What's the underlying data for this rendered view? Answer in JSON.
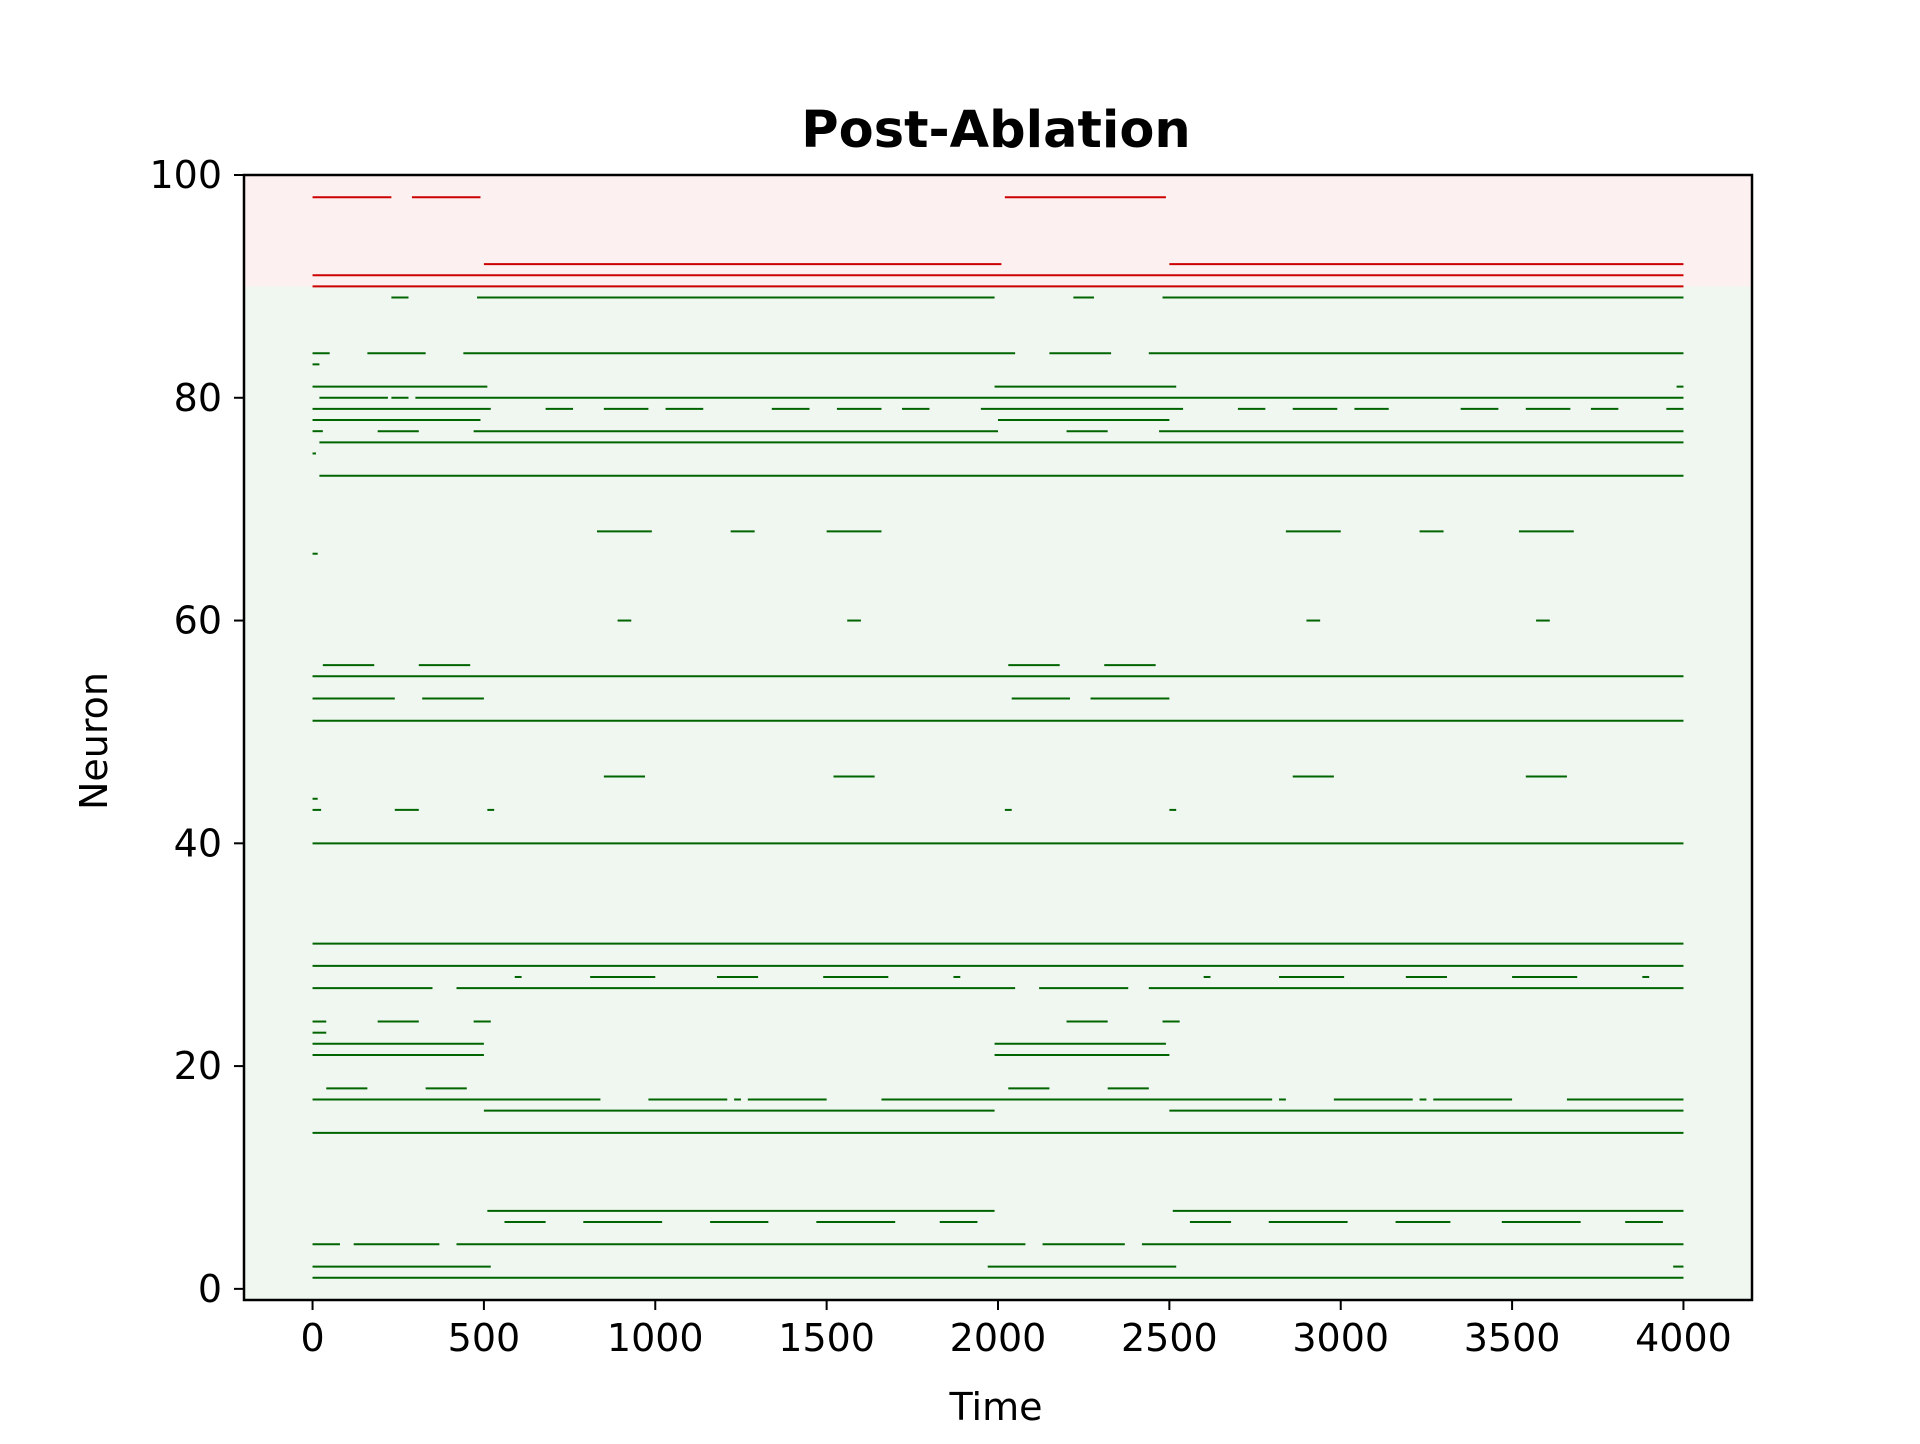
{
  "chart_data": {
    "type": "raster",
    "title": "Post-Ablation",
    "xlabel": "Time",
    "ylabel": "Neuron",
    "xlim": [
      -200,
      4200
    ],
    "ylim": [
      -1,
      100
    ],
    "x_ticks": [
      0,
      500,
      1000,
      1500,
      2000,
      2500,
      3000,
      3500,
      4000
    ],
    "x_tick_labels": [
      "0",
      "500",
      "1000",
      "1500",
      "2000",
      "2500",
      "3000",
      "3500",
      "4000"
    ],
    "y_ticks": [
      0,
      20,
      40,
      60,
      80,
      100
    ],
    "y_tick_labels": [
      "0",
      "20",
      "40",
      "60",
      "80",
      "100"
    ],
    "grid": false,
    "regions": [
      {
        "y_from": -1,
        "y_to": 90,
        "color": "#f0f7f0"
      },
      {
        "y_from": 90,
        "y_to": 100,
        "color": "#fdf0f0"
      }
    ],
    "series": [
      {
        "color": "#cc0000",
        "segments": [
          {
            "y": 98,
            "x0": 0,
            "x1": 230
          },
          {
            "y": 98,
            "x0": 290,
            "x1": 490
          },
          {
            "y": 98,
            "x0": 2020,
            "x1": 2490
          },
          {
            "y": 92,
            "x0": 500,
            "x1": 2010
          },
          {
            "y": 92,
            "x0": 2500,
            "x1": 4000
          },
          {
            "y": 91,
            "x0": 0,
            "x1": 4000
          },
          {
            "y": 90,
            "x0": 0,
            "x1": 4000
          }
        ]
      },
      {
        "color": "#006400",
        "segments": [
          {
            "y": 89,
            "x0": 230,
            "x1": 280
          },
          {
            "y": 89,
            "x0": 480,
            "x1": 1990
          },
          {
            "y": 89,
            "x0": 2220,
            "x1": 2280
          },
          {
            "y": 89,
            "x0": 2480,
            "x1": 4000
          },
          {
            "y": 84,
            "x0": 0,
            "x1": 50
          },
          {
            "y": 84,
            "x0": 160,
            "x1": 330
          },
          {
            "y": 84,
            "x0": 440,
            "x1": 2050
          },
          {
            "y": 84,
            "x0": 2150,
            "x1": 2330
          },
          {
            "y": 84,
            "x0": 2440,
            "x1": 4000
          },
          {
            "y": 83,
            "x0": 0,
            "x1": 20
          },
          {
            "y": 81,
            "x0": 0,
            "x1": 510
          },
          {
            "y": 81,
            "x0": 1990,
            "x1": 2520
          },
          {
            "y": 81,
            "x0": 3980,
            "x1": 4000
          },
          {
            "y": 80,
            "x0": 20,
            "x1": 220
          },
          {
            "y": 80,
            "x0": 230,
            "x1": 280
          },
          {
            "y": 80,
            "x0": 300,
            "x1": 4000
          },
          {
            "y": 79,
            "x0": 0,
            "x1": 520
          },
          {
            "y": 79,
            "x0": 680,
            "x1": 760
          },
          {
            "y": 79,
            "x0": 850,
            "x1": 980
          },
          {
            "y": 79,
            "x0": 1030,
            "x1": 1140
          },
          {
            "y": 79,
            "x0": 1340,
            "x1": 1450
          },
          {
            "y": 79,
            "x0": 1530,
            "x1": 1660
          },
          {
            "y": 79,
            "x0": 1720,
            "x1": 1800
          },
          {
            "y": 79,
            "x0": 1950,
            "x1": 2540
          },
          {
            "y": 79,
            "x0": 2700,
            "x1": 2780
          },
          {
            "y": 79,
            "x0": 2860,
            "x1": 2990
          },
          {
            "y": 79,
            "x0": 3040,
            "x1": 3140
          },
          {
            "y": 79,
            "x0": 3350,
            "x1": 3460
          },
          {
            "y": 79,
            "x0": 3540,
            "x1": 3670
          },
          {
            "y": 79,
            "x0": 3730,
            "x1": 3810
          },
          {
            "y": 79,
            "x0": 3950,
            "x1": 4000
          },
          {
            "y": 78,
            "x0": 0,
            "x1": 490
          },
          {
            "y": 78,
            "x0": 2000,
            "x1": 2500
          },
          {
            "y": 77,
            "x0": 0,
            "x1": 30
          },
          {
            "y": 77,
            "x0": 190,
            "x1": 310
          },
          {
            "y": 77,
            "x0": 470,
            "x1": 2000
          },
          {
            "y": 77,
            "x0": 2200,
            "x1": 2320
          },
          {
            "y": 77,
            "x0": 2470,
            "x1": 4000
          },
          {
            "y": 76,
            "x0": 20,
            "x1": 4000
          },
          {
            "y": 75,
            "x0": 0,
            "x1": 10
          },
          {
            "y": 73,
            "x0": 20,
            "x1": 4000
          },
          {
            "y": 68,
            "x0": 830,
            "x1": 990
          },
          {
            "y": 68,
            "x0": 1220,
            "x1": 1290
          },
          {
            "y": 68,
            "x0": 1500,
            "x1": 1660
          },
          {
            "y": 68,
            "x0": 2840,
            "x1": 3000
          },
          {
            "y": 68,
            "x0": 3230,
            "x1": 3300
          },
          {
            "y": 68,
            "x0": 3520,
            "x1": 3680
          },
          {
            "y": 66,
            "x0": 0,
            "x1": 15
          },
          {
            "y": 60,
            "x0": 890,
            "x1": 930
          },
          {
            "y": 60,
            "x0": 1560,
            "x1": 1600
          },
          {
            "y": 60,
            "x0": 2900,
            "x1": 2940
          },
          {
            "y": 60,
            "x0": 3570,
            "x1": 3610
          },
          {
            "y": 56,
            "x0": 30,
            "x1": 180
          },
          {
            "y": 56,
            "x0": 310,
            "x1": 460
          },
          {
            "y": 56,
            "x0": 2030,
            "x1": 2180
          },
          {
            "y": 56,
            "x0": 2310,
            "x1": 2460
          },
          {
            "y": 55,
            "x0": 0,
            "x1": 4000
          },
          {
            "y": 53,
            "x0": 0,
            "x1": 240
          },
          {
            "y": 53,
            "x0": 320,
            "x1": 500
          },
          {
            "y": 53,
            "x0": 2040,
            "x1": 2210
          },
          {
            "y": 53,
            "x0": 2270,
            "x1": 2500
          },
          {
            "y": 51,
            "x0": 0,
            "x1": 4000
          },
          {
            "y": 46,
            "x0": 850,
            "x1": 970
          },
          {
            "y": 46,
            "x0": 1520,
            "x1": 1640
          },
          {
            "y": 46,
            "x0": 2860,
            "x1": 2980
          },
          {
            "y": 46,
            "x0": 3540,
            "x1": 3660
          },
          {
            "y": 44,
            "x0": 0,
            "x1": 15
          },
          {
            "y": 43,
            "x0": 0,
            "x1": 25
          },
          {
            "y": 43,
            "x0": 240,
            "x1": 310
          },
          {
            "y": 43,
            "x0": 510,
            "x1": 530
          },
          {
            "y": 43,
            "x0": 2020,
            "x1": 2040
          },
          {
            "y": 43,
            "x0": 2500,
            "x1": 2520
          },
          {
            "y": 40,
            "x0": 0,
            "x1": 4000
          },
          {
            "y": 31,
            "x0": 0,
            "x1": 4000
          },
          {
            "y": 29,
            "x0": 0,
            "x1": 4000
          },
          {
            "y": 28,
            "x0": 590,
            "x1": 610
          },
          {
            "y": 28,
            "x0": 810,
            "x1": 1000
          },
          {
            "y": 28,
            "x0": 1180,
            "x1": 1300
          },
          {
            "y": 28,
            "x0": 1490,
            "x1": 1680
          },
          {
            "y": 28,
            "x0": 1870,
            "x1": 1890
          },
          {
            "y": 28,
            "x0": 2600,
            "x1": 2620
          },
          {
            "y": 28,
            "x0": 2820,
            "x1": 3010
          },
          {
            "y": 28,
            "x0": 3190,
            "x1": 3310
          },
          {
            "y": 28,
            "x0": 3500,
            "x1": 3690
          },
          {
            "y": 28,
            "x0": 3880,
            "x1": 3900
          },
          {
            "y": 27,
            "x0": 0,
            "x1": 350
          },
          {
            "y": 27,
            "x0": 420,
            "x1": 2050
          },
          {
            "y": 27,
            "x0": 2120,
            "x1": 2380
          },
          {
            "y": 27,
            "x0": 2440,
            "x1": 4000
          },
          {
            "y": 24,
            "x0": 0,
            "x1": 40
          },
          {
            "y": 24,
            "x0": 190,
            "x1": 310
          },
          {
            "y": 24,
            "x0": 470,
            "x1": 520
          },
          {
            "y": 24,
            "x0": 2200,
            "x1": 2320
          },
          {
            "y": 24,
            "x0": 2480,
            "x1": 2530
          },
          {
            "y": 23,
            "x0": 0,
            "x1": 40
          },
          {
            "y": 22,
            "x0": 0,
            "x1": 500
          },
          {
            "y": 22,
            "x0": 1990,
            "x1": 2490
          },
          {
            "y": 21,
            "x0": 0,
            "x1": 500
          },
          {
            "y": 21,
            "x0": 1990,
            "x1": 2500
          },
          {
            "y": 18,
            "x0": 40,
            "x1": 160
          },
          {
            "y": 18,
            "x0": 330,
            "x1": 450
          },
          {
            "y": 18,
            "x0": 2030,
            "x1": 2150
          },
          {
            "y": 18,
            "x0": 2320,
            "x1": 2440
          },
          {
            "y": 17,
            "x0": 0,
            "x1": 840
          },
          {
            "y": 17,
            "x0": 980,
            "x1": 1210
          },
          {
            "y": 17,
            "x0": 1230,
            "x1": 1250
          },
          {
            "y": 17,
            "x0": 1270,
            "x1": 1500
          },
          {
            "y": 17,
            "x0": 1660,
            "x1": 2800
          },
          {
            "y": 17,
            "x0": 2820,
            "x1": 2840
          },
          {
            "y": 17,
            "x0": 2980,
            "x1": 3210
          },
          {
            "y": 17,
            "x0": 3230,
            "x1": 3250
          },
          {
            "y": 17,
            "x0": 3270,
            "x1": 3500
          },
          {
            "y": 17,
            "x0": 3660,
            "x1": 4000
          },
          {
            "y": 16,
            "x0": 500,
            "x1": 1990
          },
          {
            "y": 16,
            "x0": 2500,
            "x1": 4000
          },
          {
            "y": 14,
            "x0": 0,
            "x1": 4000
          },
          {
            "y": 7,
            "x0": 510,
            "x1": 1990
          },
          {
            "y": 7,
            "x0": 2510,
            "x1": 4000
          },
          {
            "y": 6,
            "x0": 560,
            "x1": 680
          },
          {
            "y": 6,
            "x0": 790,
            "x1": 1020
          },
          {
            "y": 6,
            "x0": 1160,
            "x1": 1330
          },
          {
            "y": 6,
            "x0": 1470,
            "x1": 1700
          },
          {
            "y": 6,
            "x0": 1830,
            "x1": 1940
          },
          {
            "y": 6,
            "x0": 2560,
            "x1": 2680
          },
          {
            "y": 6,
            "x0": 2790,
            "x1": 3020
          },
          {
            "y": 6,
            "x0": 3160,
            "x1": 3320
          },
          {
            "y": 6,
            "x0": 3470,
            "x1": 3700
          },
          {
            "y": 6,
            "x0": 3830,
            "x1": 3940
          },
          {
            "y": 4,
            "x0": 0,
            "x1": 80
          },
          {
            "y": 4,
            "x0": 120,
            "x1": 370
          },
          {
            "y": 4,
            "x0": 420,
            "x1": 2080
          },
          {
            "y": 4,
            "x0": 2130,
            "x1": 2370
          },
          {
            "y": 4,
            "x0": 2420,
            "x1": 4000
          },
          {
            "y": 2,
            "x0": 0,
            "x1": 520
          },
          {
            "y": 2,
            "x0": 1970,
            "x1": 2520
          },
          {
            "y": 2,
            "x0": 3970,
            "x1": 4000
          },
          {
            "y": 1,
            "x0": 0,
            "x1": 4000
          }
        ]
      }
    ]
  }
}
